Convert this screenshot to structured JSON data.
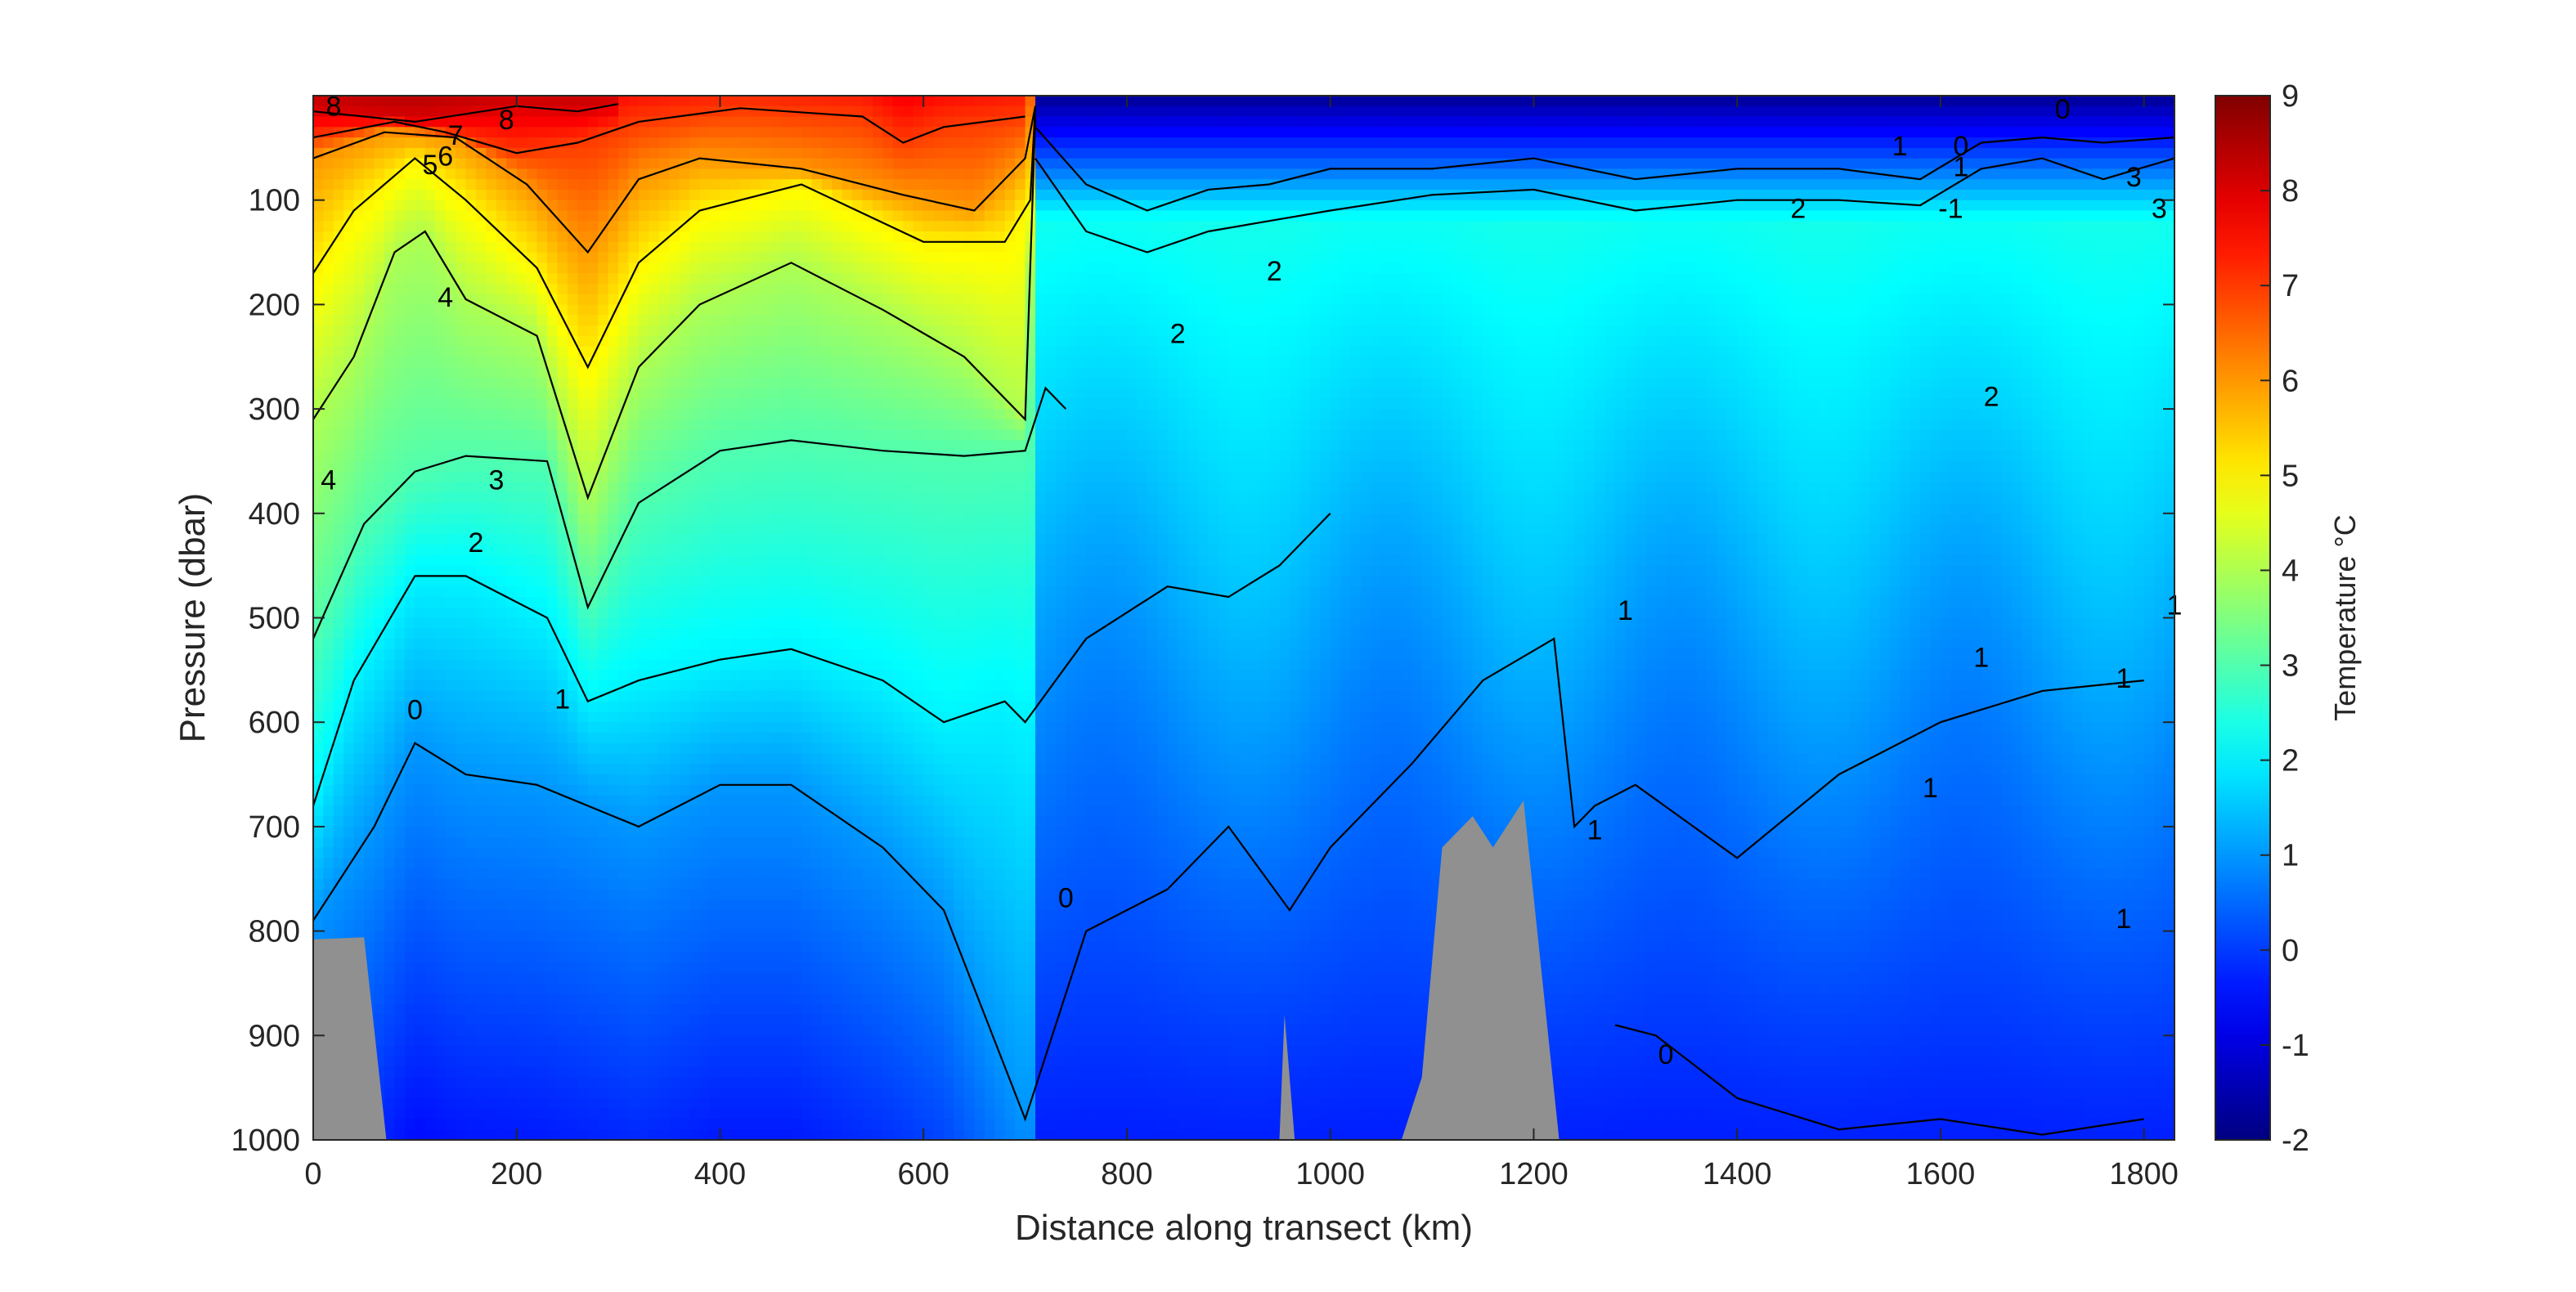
{
  "chart_data": {
    "type": "heatmap",
    "xlabel": "Distance along transect (km)",
    "ylabel": "Pressure (dbar)",
    "xlim": [
      0,
      1830
    ],
    "ylim": [
      1000,
      0
    ],
    "y_reversed": true,
    "x_ticks": [
      0,
      200,
      400,
      600,
      800,
      1000,
      1200,
      1400,
      1600,
      1800
    ],
    "y_ticks": [
      100,
      200,
      300,
      400,
      500,
      600,
      700,
      800,
      900,
      1000
    ],
    "colorbar": {
      "label": "Temperature °C",
      "range": [
        -2,
        9
      ],
      "ticks": [
        -2,
        -1,
        0,
        1,
        2,
        3,
        4,
        5,
        6,
        7,
        8,
        9
      ],
      "colormap": "jet"
    },
    "contour_levels": [
      -1,
      0,
      1,
      2,
      3,
      4,
      5,
      6,
      7,
      8
    ],
    "contours": [
      {
        "level": 8,
        "points": [
          [
            0,
            15
          ],
          [
            100,
            25
          ],
          [
            200,
            10
          ],
          [
            260,
            15
          ],
          [
            300,
            8
          ]
        ]
      },
      {
        "level": 7,
        "points": [
          [
            0,
            40
          ],
          [
            80,
            25
          ],
          [
            130,
            35
          ],
          [
            200,
            55
          ],
          [
            260,
            45
          ],
          [
            320,
            25
          ],
          [
            420,
            12
          ],
          [
            540,
            20
          ],
          [
            580,
            45
          ],
          [
            620,
            30
          ],
          [
            700,
            20
          ]
        ]
      },
      {
        "level": 6,
        "points": [
          [
            0,
            60
          ],
          [
            70,
            35
          ],
          [
            140,
            40
          ],
          [
            210,
            85
          ],
          [
            270,
            150
          ],
          [
            320,
            80
          ],
          [
            380,
            60
          ],
          [
            480,
            70
          ],
          [
            580,
            95
          ],
          [
            650,
            110
          ],
          [
            700,
            60
          ],
          [
            710,
            10
          ]
        ]
      },
      {
        "level": 5,
        "points": [
          [
            0,
            170
          ],
          [
            40,
            110
          ],
          [
            100,
            60
          ],
          [
            150,
            100
          ],
          [
            220,
            165
          ],
          [
            270,
            260
          ],
          [
            320,
            160
          ],
          [
            380,
            110
          ],
          [
            480,
            85
          ],
          [
            600,
            140
          ],
          [
            680,
            140
          ],
          [
            705,
            100
          ],
          [
            710,
            10
          ]
        ]
      },
      {
        "level": 4,
        "points": [
          [
            0,
            310
          ],
          [
            40,
            250
          ],
          [
            80,
            150
          ],
          [
            110,
            130
          ],
          [
            150,
            195
          ],
          [
            220,
            230
          ],
          [
            270,
            385
          ],
          [
            320,
            260
          ],
          [
            380,
            200
          ],
          [
            470,
            160
          ],
          [
            560,
            205
          ],
          [
            640,
            250
          ],
          [
            700,
            310
          ],
          [
            710,
            20
          ]
        ]
      },
      {
        "level": 3,
        "points": [
          [
            0,
            520
          ],
          [
            50,
            410
          ],
          [
            100,
            360
          ],
          [
            150,
            345
          ],
          [
            230,
            350
          ],
          [
            270,
            490
          ],
          [
            320,
            390
          ],
          [
            400,
            340
          ],
          [
            470,
            330
          ],
          [
            560,
            340
          ],
          [
            640,
            345
          ],
          [
            700,
            340
          ],
          [
            720,
            280
          ],
          [
            740,
            300
          ]
        ]
      },
      {
        "level": 2,
        "points": [
          [
            0,
            680
          ],
          [
            40,
            560
          ],
          [
            100,
            460
          ],
          [
            150,
            460
          ],
          [
            230,
            500
          ],
          [
            270,
            580
          ],
          [
            320,
            560
          ],
          [
            400,
            540
          ],
          [
            470,
            530
          ],
          [
            560,
            560
          ],
          [
            620,
            600
          ],
          [
            680,
            580
          ],
          [
            700,
            600
          ],
          [
            760,
            520
          ],
          [
            840,
            470
          ],
          [
            900,
            480
          ],
          [
            950,
            450
          ],
          [
            1000,
            400
          ]
        ]
      },
      {
        "level": 1,
        "points": [
          [
            0,
            790
          ],
          [
            60,
            700
          ],
          [
            100,
            620
          ],
          [
            150,
            650
          ],
          [
            220,
            660
          ],
          [
            270,
            680
          ],
          [
            320,
            700
          ],
          [
            400,
            660
          ],
          [
            470,
            660
          ],
          [
            560,
            720
          ],
          [
            620,
            780
          ],
          [
            700,
            980
          ],
          [
            760,
            800
          ],
          [
            840,
            760
          ],
          [
            900,
            700
          ],
          [
            960,
            780
          ],
          [
            1000,
            720
          ],
          [
            1080,
            640
          ],
          [
            1150,
            560
          ],
          [
            1220,
            520
          ],
          [
            1240,
            700
          ],
          [
            1260,
            680
          ],
          [
            1300,
            660
          ],
          [
            1400,
            730
          ],
          [
            1500,
            650
          ],
          [
            1600,
            600
          ],
          [
            1700,
            570
          ],
          [
            1800,
            560
          ]
        ]
      },
      {
        "level": 0,
        "points": [
          [
            1280,
            890
          ],
          [
            1320,
            900
          ],
          [
            1400,
            960
          ],
          [
            1500,
            990
          ],
          [
            1600,
            980
          ],
          [
            1700,
            995
          ],
          [
            1800,
            980
          ]
        ]
      },
      {
        "level": 2,
        "points": [
          [
            710,
            60
          ],
          [
            760,
            130
          ],
          [
            820,
            150
          ],
          [
            880,
            130
          ],
          [
            940,
            120
          ],
          [
            1000,
            110
          ],
          [
            1100,
            95
          ],
          [
            1200,
            90
          ],
          [
            1300,
            110
          ],
          [
            1400,
            100
          ],
          [
            1500,
            100
          ],
          [
            1580,
            105
          ],
          [
            1640,
            70
          ],
          [
            1700,
            60
          ],
          [
            1760,
            80
          ],
          [
            1830,
            60
          ]
        ]
      },
      {
        "level": 1,
        "points": [
          [
            710,
            30
          ],
          [
            760,
            85
          ],
          [
            820,
            110
          ],
          [
            880,
            90
          ],
          [
            940,
            85
          ],
          [
            1000,
            70
          ],
          [
            1100,
            70
          ],
          [
            1200,
            60
          ],
          [
            1300,
            80
          ],
          [
            1400,
            70
          ],
          [
            1500,
            70
          ],
          [
            1580,
            80
          ],
          [
            1640,
            45
          ],
          [
            1700,
            40
          ],
          [
            1760,
            45
          ],
          [
            1830,
            40
          ]
        ]
      }
    ],
    "contour_labels": [
      {
        "text": "8",
        "x": 20,
        "y": 12
      },
      {
        "text": "8",
        "x": 190,
        "y": 25
      },
      {
        "text": "7",
        "x": 140,
        "y": 40
      },
      {
        "text": "6",
        "x": 130,
        "y": 60
      },
      {
        "text": "5",
        "x": 115,
        "y": 68
      },
      {
        "text": "4",
        "x": 130,
        "y": 195
      },
      {
        "text": "4",
        "x": 15,
        "y": 370
      },
      {
        "text": "3",
        "x": 180,
        "y": 370
      },
      {
        "text": "2",
        "x": 160,
        "y": 430
      },
      {
        "text": "1",
        "x": 245,
        "y": 580
      },
      {
        "text": "0",
        "x": 100,
        "y": 590
      },
      {
        "text": "0",
        "x": 740,
        "y": 770
      },
      {
        "text": "2",
        "x": 850,
        "y": 230
      },
      {
        "text": "2",
        "x": 945,
        "y": 170
      },
      {
        "text": "1",
        "x": 1290,
        "y": 495
      },
      {
        "text": "1",
        "x": 1260,
        "y": 705
      },
      {
        "text": "0",
        "x": 1330,
        "y": 920
      },
      {
        "text": "2",
        "x": 1460,
        "y": 110
      },
      {
        "text": "1",
        "x": 1560,
        "y": 50
      },
      {
        "text": "0",
        "x": 1620,
        "y": 50
      },
      {
        "text": "1",
        "x": 1620,
        "y": 70
      },
      {
        "text": "-1",
        "x": 1610,
        "y": 110
      },
      {
        "text": "0",
        "x": 1720,
        "y": 15
      },
      {
        "text": "2",
        "x": 1650,
        "y": 290
      },
      {
        "text": "1",
        "x": 1640,
        "y": 540
      },
      {
        "text": "1",
        "x": 1590,
        "y": 665
      },
      {
        "text": "1",
        "x": 1780,
        "y": 560
      },
      {
        "text": "1",
        "x": 1780,
        "y": 790
      },
      {
        "text": "3",
        "x": 1790,
        "y": 80
      },
      {
        "text": "3",
        "x": 1815,
        "y": 110
      },
      {
        "text": "1",
        "x": 1830,
        "y": 490
      }
    ],
    "bathymetry_polygons": [
      [
        [
          0,
          1000
        ],
        [
          0,
          808
        ],
        [
          50,
          806
        ],
        [
          72,
          1000
        ]
      ],
      [
        [
          950,
          1000
        ],
        [
          955,
          880
        ],
        [
          965,
          1000
        ]
      ],
      [
        [
          1070,
          1000
        ],
        [
          1090,
          940
        ],
        [
          1110,
          720
        ],
        [
          1140,
          690
        ],
        [
          1160,
          720
        ],
        [
          1190,
          675
        ],
        [
          1225,
          1000
        ]
      ]
    ]
  }
}
